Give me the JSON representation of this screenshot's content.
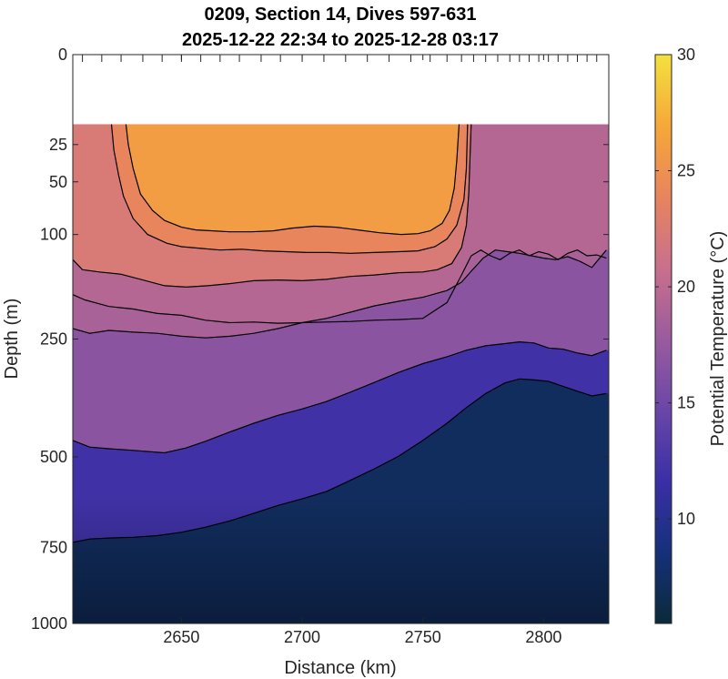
{
  "chart_data": {
    "type": "heatmap",
    "title_line1": "0209, Section 14, Dives 597-631",
    "title_line2": "2025-12-22 22:34 to 2025-12-28 03:17",
    "xlabel": "Distance (km)",
    "ylabel": "Depth (m)",
    "colorbar_label": "Potential Temperature (°C)",
    "xlim": [
      2605,
      2827
    ],
    "ylim": [
      0,
      1000
    ],
    "yscale": "sqrt",
    "x_ticks": [
      2650,
      2700,
      2750,
      2800
    ],
    "x_tick_labels": [
      "2650",
      "2700",
      "2750",
      "2800"
    ],
    "y_ticks": [
      0,
      25,
      50,
      100,
      250,
      500,
      750,
      1000
    ],
    "y_tick_labels": [
      "0",
      "25",
      "50",
      "100",
      "250",
      "500",
      "750",
      "1000"
    ],
    "colorbar_lim": [
      5.5,
      30
    ],
    "colorbar_ticks": [
      10,
      15,
      20,
      25,
      30
    ],
    "colorbar_tick_labels": [
      "10",
      "15",
      "20",
      "25",
      "30"
    ],
    "colormap": [
      "#0b2a3a",
      "#15307a",
      "#3a2fa6",
      "#6a46a8",
      "#9a5b9e",
      "#c9708c",
      "#e8845e",
      "#f6a838",
      "#f3e13f"
    ],
    "data_top_depth": 15,
    "dive_top_marks_x": [
      2609,
      2617,
      2625,
      2634,
      2642,
      2650,
      2658,
      2666,
      2674,
      2683,
      2691,
      2700,
      2709,
      2718,
      2727,
      2736,
      2745,
      2753,
      2760,
      2766,
      2771,
      2776,
      2781,
      2786,
      2790,
      2794,
      2798,
      2802,
      2806,
      2810,
      2814,
      2818,
      2822
    ],
    "contours": [
      {
        "level": 25,
        "x": [
          2627,
          2628,
          2630,
          2633,
          2638,
          2643,
          2650,
          2656,
          2663,
          2670,
          2679,
          2688,
          2696,
          2705,
          2714,
          2723,
          2732,
          2741,
          2748,
          2753,
          2758,
          2761,
          2763,
          2764,
          2765
        ],
        "y": [
          15,
          25,
          40,
          60,
          75,
          85,
          92,
          95,
          96,
          97,
          97,
          96,
          93,
          91,
          92,
          95,
          98,
          100,
          99,
          96,
          88,
          75,
          55,
          35,
          15
        ]
      },
      {
        "level": 23,
        "x": [
          2621,
          2622,
          2624,
          2626,
          2630,
          2636,
          2644,
          2650,
          2658,
          2666,
          2675,
          2684,
          2693,
          2702,
          2711,
          2720,
          2730,
          2740,
          2748,
          2755,
          2760,
          2764,
          2767,
          2768,
          2768.5
        ],
        "y": [
          15,
          28,
          45,
          62,
          83,
          100,
          110,
          114,
          116,
          118,
          117,
          119,
          120,
          121,
          121,
          122,
          121,
          120,
          119,
          114,
          105,
          90,
          65,
          40,
          15
        ]
      },
      {
        "level": 22,
        "x": [
          2605,
          2609,
          2616,
          2625,
          2634,
          2643,
          2652,
          2661,
          2670,
          2680,
          2690,
          2700,
          2710,
          2720,
          2730,
          2740,
          2750,
          2756,
          2762,
          2766,
          2768,
          2769,
          2770
        ],
        "y": [
          130,
          143,
          146,
          149,
          157,
          165,
          167,
          165,
          162,
          158,
          157,
          158,
          156,
          152,
          150,
          147,
          146,
          143,
          135,
          115,
          90,
          60,
          15
        ]
      },
      {
        "level": 20,
        "x": [
          2605,
          2610,
          2620,
          2630,
          2640,
          2650,
          2660,
          2670,
          2680,
          2690,
          2700,
          2710,
          2720,
          2730,
          2740,
          2750,
          2760,
          2766,
          2770,
          2774,
          2778,
          2782,
          2786,
          2790,
          2794,
          2798,
          2802,
          2806,
          2810,
          2814,
          2818,
          2822,
          2826
        ],
        "y": [
          178,
          186,
          196,
          200,
          207,
          210,
          218,
          222,
          221,
          223,
          222,
          221,
          220,
          218,
          217,
          215,
          190,
          150,
          125,
          118,
          125,
          130,
          122,
          118,
          125,
          120,
          123,
          130,
          122,
          118,
          125,
          124,
          128
        ]
      },
      {
        "level": 18,
        "x": [
          2605,
          2612,
          2620,
          2630,
          2640,
          2650,
          2660,
          2670,
          2680,
          2690,
          2700,
          2710,
          2720,
          2730,
          2740,
          2750,
          2760,
          2766,
          2770,
          2775,
          2780,
          2785,
          2790,
          2795,
          2800,
          2805,
          2810,
          2815,
          2820,
          2826
        ],
        "y": [
          232,
          240,
          235,
          238,
          240,
          245,
          248,
          245,
          240,
          232,
          222,
          215,
          205,
          195,
          188,
          182,
          172,
          160,
          145,
          128,
          118,
          120,
          122,
          125,
          128,
          130,
          126,
          132,
          140,
          118
        ]
      },
      {
        "level": 15,
        "x": [
          2605,
          2612,
          2620,
          2630,
          2643,
          2652,
          2660,
          2670,
          2680,
          2690,
          2700,
          2710,
          2720,
          2730,
          2740,
          2750,
          2760,
          2768,
          2776,
          2784,
          2790,
          2796,
          2802,
          2808,
          2814,
          2820,
          2826
        ],
        "y": [
          460,
          476,
          480,
          484,
          490,
          478,
          462,
          440,
          420,
          402,
          388,
          372,
          352,
          332,
          312,
          295,
          282,
          270,
          262,
          258,
          255,
          257,
          266,
          268,
          275,
          280,
          270
        ]
      },
      {
        "level": 12,
        "x": [
          2605,
          2612,
          2620,
          2630,
          2640,
          2650,
          2660,
          2670,
          2680,
          2690,
          2700,
          2710,
          2720,
          2730,
          2740,
          2750,
          2760,
          2768,
          2776,
          2784,
          2790,
          2796,
          2802,
          2808,
          2814,
          2820,
          2826
        ],
        "y": [
          735,
          725,
          722,
          720,
          715,
          705,
          690,
          672,
          650,
          628,
          610,
          590,
          560,
          530,
          498,
          460,
          420,
          385,
          355,
          333,
          325,
          327,
          330,
          340,
          350,
          360,
          355
        ]
      }
    ]
  }
}
